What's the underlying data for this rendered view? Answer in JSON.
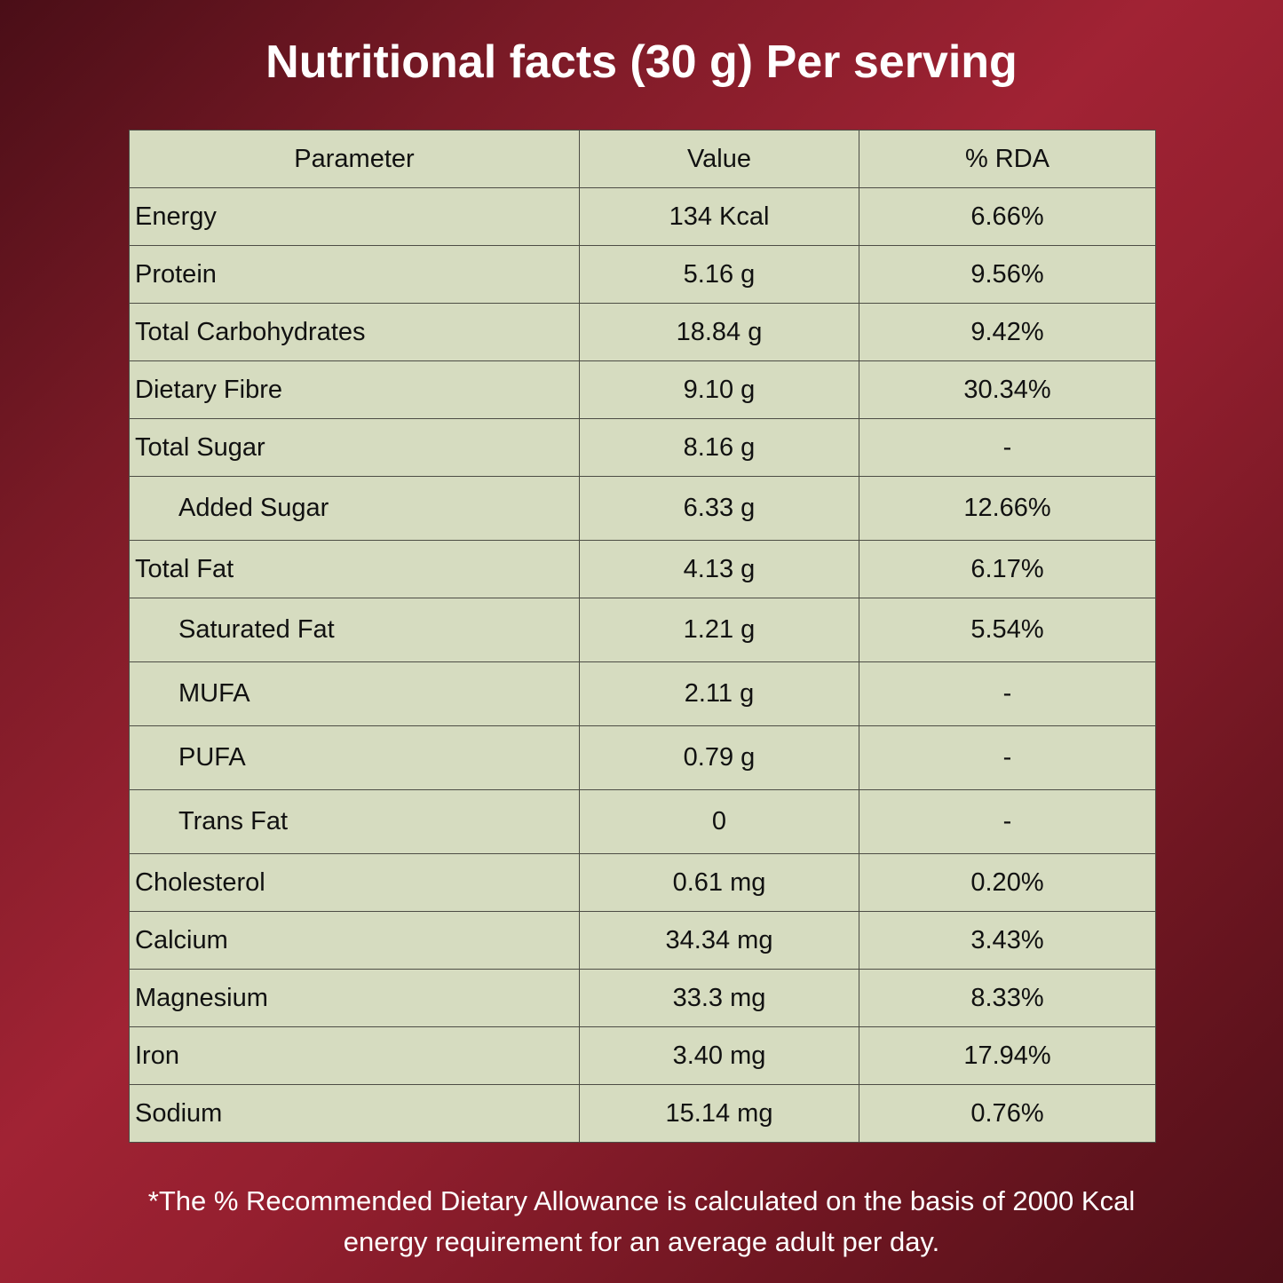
{
  "title": "Nutritional facts (30 g) Per serving",
  "table": {
    "header": [
      "Parameter",
      "Value",
      "% RDA"
    ],
    "rows": [
      {
        "cells": [
          "Energy",
          "134 Kcal",
          "6.66%"
        ]
      },
      {
        "cells": [
          "Protein",
          "5.16 g",
          "9.56%"
        ]
      },
      {
        "cells": [
          "Total Carbohydrates",
          "18.84 g",
          "9.42%"
        ]
      },
      {
        "cells": [
          "Dietary Fibre",
          "9.10 g",
          "30.34%"
        ]
      },
      {
        "cells": [
          "Total Sugar",
          "8.16 g",
          "-"
        ]
      },
      {
        "cells": [
          "Added Sugar",
          "6.33 g",
          "12.66%"
        ],
        "indent": true
      },
      {
        "cells": [
          "Total Fat",
          "4.13 g",
          "6.17%"
        ]
      },
      {
        "cells": [
          "Saturated Fat",
          "1.21 g",
          "5.54%"
        ],
        "indent": true
      },
      {
        "cells": [
          "MUFA",
          "2.11 g",
          "-"
        ],
        "indent": true
      },
      {
        "cells": [
          "PUFA",
          "0.79 g",
          "-"
        ],
        "indent": true
      },
      {
        "cells": [
          "Trans Fat",
          "0",
          "-"
        ],
        "indent": true
      },
      {
        "cells": [
          "Cholesterol",
          "0.61 mg",
          "0.20%"
        ]
      },
      {
        "cells": [
          "Calcium",
          "34.34 mg",
          "3.43%"
        ]
      },
      {
        "cells": [
          "Magnesium",
          "33.3 mg",
          "8.33%"
        ]
      },
      {
        "cells": [
          "Iron",
          "3.40 mg",
          "17.94%"
        ]
      },
      {
        "cells": [
          "Sodium",
          "15.14 mg",
          "0.76%"
        ]
      }
    ]
  },
  "footer": "*The % Recommended Dietary Allowance is calculated on the basis of 2000 Kcal energy requirement for an average adult per day."
}
